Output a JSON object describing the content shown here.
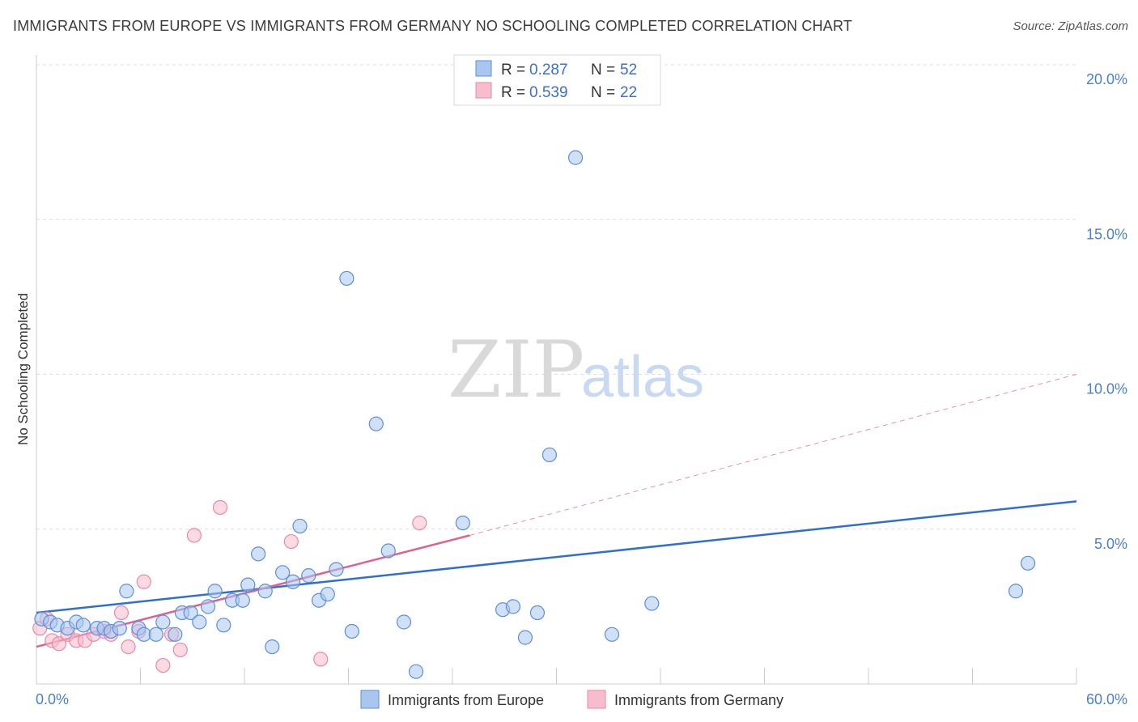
{
  "title": "IMMIGRANTS FROM EUROPE VS IMMIGRANTS FROM GERMANY NO SCHOOLING COMPLETED CORRELATION CHART",
  "source": "Source: ZipAtlas.com",
  "watermark": {
    "zip": "ZIP",
    "atlas": "atlas"
  },
  "colors": {
    "europe_fill": "#a9c6f0",
    "europe_stroke": "#5b8fd6",
    "europe_line": "#2f6fd0",
    "germany_fill": "#f7bccd",
    "germany_stroke": "#e889a6",
    "germany_line": "#e06090",
    "grid": "#dddddd",
    "axis_text": "#4a7fd0"
  },
  "legend": {
    "europe": {
      "r_label": "R =",
      "r_value": "0.287",
      "n_label": "N =",
      "n_value": "52"
    },
    "germany": {
      "r_label": "R =",
      "r_value": "0.539",
      "n_label": "N =",
      "n_value": "22"
    }
  },
  "chart_data": {
    "type": "scatter",
    "title": "IMMIGRANTS FROM EUROPE VS IMMIGRANTS FROM GERMANY NO SCHOOLING COMPLETED CORRELATION CHART",
    "xlabel": "",
    "ylabel": "No Schooling Completed",
    "xlim": [
      0,
      60
    ],
    "ylim": [
      0,
      20
    ],
    "x_tick_labels": [
      "0.0%",
      "60.0%"
    ],
    "y_ticks": [
      5,
      10,
      15,
      20
    ],
    "y_tick_labels": [
      "5.0%",
      "10.0%",
      "15.0%",
      "20.0%"
    ],
    "grid": true,
    "legend_position": "top-center",
    "series": [
      {
        "name": "Immigrants from Europe",
        "r": 0.287,
        "n": 52,
        "trend": {
          "x0": 0,
          "y0": 2.3,
          "x1": 60,
          "y1": 5.9
        },
        "points": [
          [
            0.3,
            2.1
          ],
          [
            0.8,
            2.0
          ],
          [
            1.2,
            1.9
          ],
          [
            1.8,
            1.8
          ],
          [
            2.3,
            2.0
          ],
          [
            2.7,
            1.9
          ],
          [
            3.5,
            1.8
          ],
          [
            3.9,
            1.8
          ],
          [
            4.3,
            1.7
          ],
          [
            4.8,
            1.8
          ],
          [
            5.2,
            3.0
          ],
          [
            5.9,
            1.8
          ],
          [
            6.2,
            1.6
          ],
          [
            6.9,
            1.6
          ],
          [
            7.3,
            2.0
          ],
          [
            8.0,
            1.6
          ],
          [
            8.4,
            2.3
          ],
          [
            8.9,
            2.3
          ],
          [
            9.4,
            2.0
          ],
          [
            9.9,
            2.5
          ],
          [
            10.3,
            3.0
          ],
          [
            10.8,
            1.9
          ],
          [
            11.3,
            2.7
          ],
          [
            11.9,
            2.7
          ],
          [
            12.2,
            3.2
          ],
          [
            12.8,
            4.2
          ],
          [
            13.2,
            3.0
          ],
          [
            13.6,
            1.2
          ],
          [
            14.2,
            3.6
          ],
          [
            14.8,
            3.3
          ],
          [
            15.2,
            5.1
          ],
          [
            15.7,
            3.5
          ],
          [
            16.3,
            2.7
          ],
          [
            16.8,
            2.9
          ],
          [
            17.3,
            3.7
          ],
          [
            17.9,
            13.1
          ],
          [
            18.2,
            1.7
          ],
          [
            19.6,
            8.4
          ],
          [
            20.3,
            4.3
          ],
          [
            21.2,
            2.0
          ],
          [
            21.9,
            0.4
          ],
          [
            24.6,
            5.2
          ],
          [
            26.9,
            2.4
          ],
          [
            27.5,
            2.5
          ],
          [
            28.2,
            1.5
          ],
          [
            28.9,
            2.3
          ],
          [
            29.6,
            7.4
          ],
          [
            31.1,
            17.0
          ],
          [
            33.2,
            1.6
          ],
          [
            35.5,
            2.6
          ],
          [
            56.5,
            3.0
          ],
          [
            57.2,
            3.9
          ]
        ]
      },
      {
        "name": "Immigrants from Germany",
        "r": 0.539,
        "n": 22,
        "trend": {
          "x0": 0,
          "y0": 1.2,
          "x1": 25,
          "y1": 4.8
        },
        "trend_extended": {
          "x0": 25,
          "y0": 4.8,
          "x1": 60,
          "y1": 10.0
        },
        "points": [
          [
            0.2,
            1.8
          ],
          [
            0.6,
            2.1
          ],
          [
            0.9,
            1.4
          ],
          [
            1.3,
            1.3
          ],
          [
            1.8,
            1.6
          ],
          [
            2.3,
            1.4
          ],
          [
            2.8,
            1.4
          ],
          [
            3.3,
            1.6
          ],
          [
            3.9,
            1.7
          ],
          [
            4.3,
            1.6
          ],
          [
            4.9,
            2.3
          ],
          [
            5.3,
            1.2
          ],
          [
            5.9,
            1.7
          ],
          [
            6.2,
            3.3
          ],
          [
            7.3,
            0.6
          ],
          [
            7.8,
            1.6
          ],
          [
            8.3,
            1.1
          ],
          [
            9.1,
            4.8
          ],
          [
            10.6,
            5.7
          ],
          [
            14.7,
            4.6
          ],
          [
            16.4,
            0.8
          ],
          [
            22.1,
            5.2
          ]
        ]
      }
    ]
  },
  "bottom_legend": {
    "europe": "Immigrants from Europe",
    "germany": "Immigrants from Germany"
  }
}
